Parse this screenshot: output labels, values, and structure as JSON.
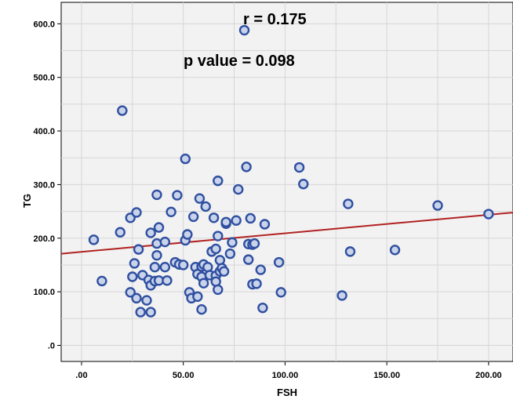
{
  "chart_data": {
    "type": "scatter",
    "title": "",
    "xlabel": "FSH",
    "ylabel": "TG",
    "xlim": [
      -10,
      212
    ],
    "ylim": [
      -30,
      640
    ],
    "x_ticks": [
      0,
      50,
      100,
      150,
      200
    ],
    "x_tick_labels": [
      ".00",
      "50.00",
      "100.00",
      "150.00",
      "200.00"
    ],
    "y_ticks": [
      0,
      100,
      200,
      300,
      400,
      500,
      600
    ],
    "y_tick_labels": [
      ".0",
      "100.0",
      "200.0",
      "300.0",
      "400.0",
      "500.0",
      "600.0"
    ],
    "grid": true,
    "annotations": [
      "r =  0.175",
      "p value = 0.098"
    ],
    "marker_color": "#2f4fa0",
    "marker_fill": "#c9d3ea",
    "line_color": "#b22222",
    "regression_line": {
      "intercept": 174.5,
      "slope": 0.346
    },
    "points": [
      [
        6,
        197
      ],
      [
        10,
        120
      ],
      [
        19,
        211
      ],
      [
        20,
        438
      ],
      [
        24,
        238
      ],
      [
        24,
        99
      ],
      [
        25,
        128
      ],
      [
        26,
        153
      ],
      [
        27,
        248
      ],
      [
        27,
        88
      ],
      [
        28,
        179
      ],
      [
        29,
        62
      ],
      [
        30,
        131
      ],
      [
        32,
        84
      ],
      [
        33,
        122
      ],
      [
        34,
        112
      ],
      [
        34,
        210
      ],
      [
        34,
        62
      ],
      [
        36,
        120
      ],
      [
        36,
        146
      ],
      [
        37,
        281
      ],
      [
        37,
        190
      ],
      [
        37,
        168
      ],
      [
        38,
        220
      ],
      [
        38,
        121
      ],
      [
        41,
        193
      ],
      [
        41,
        146
      ],
      [
        42,
        121
      ],
      [
        44,
        249
      ],
      [
        46,
        155
      ],
      [
        47,
        280
      ],
      [
        48,
        151
      ],
      [
        50,
        150
      ],
      [
        51,
        348
      ],
      [
        51,
        196
      ],
      [
        52,
        207
      ],
      [
        53,
        99
      ],
      [
        54,
        88
      ],
      [
        55,
        240
      ],
      [
        56,
        146
      ],
      [
        57,
        91
      ],
      [
        57,
        133
      ],
      [
        58,
        274
      ],
      [
        59,
        67
      ],
      [
        59,
        147
      ],
      [
        59,
        128
      ],
      [
        60,
        151
      ],
      [
        60,
        116
      ],
      [
        61,
        259
      ],
      [
        62,
        146
      ],
      [
        63,
        131
      ],
      [
        64,
        175
      ],
      [
        65,
        238
      ],
      [
        66,
        130
      ],
      [
        66,
        180
      ],
      [
        66,
        119
      ],
      [
        67,
        104
      ],
      [
        67,
        204
      ],
      [
        67,
        307
      ],
      [
        68,
        159
      ],
      [
        68,
        138
      ],
      [
        69,
        144
      ],
      [
        70,
        138
      ],
      [
        71,
        227
      ],
      [
        71,
        230
      ],
      [
        73,
        171
      ],
      [
        74,
        192
      ],
      [
        76,
        233
      ],
      [
        77,
        291
      ],
      [
        80,
        588
      ],
      [
        81,
        333
      ],
      [
        82,
        189
      ],
      [
        82,
        160
      ],
      [
        83,
        237
      ],
      [
        84,
        114
      ],
      [
        84,
        188
      ],
      [
        85,
        190
      ],
      [
        86,
        115
      ],
      [
        88,
        141
      ],
      [
        89,
        70
      ],
      [
        90,
        226
      ],
      [
        97,
        155
      ],
      [
        98,
        99
      ],
      [
        107,
        332
      ],
      [
        109,
        301
      ],
      [
        128,
        93
      ],
      [
        131,
        264
      ],
      [
        132,
        175
      ],
      [
        154,
        178
      ],
      [
        175,
        261
      ],
      [
        200,
        245
      ]
    ]
  }
}
